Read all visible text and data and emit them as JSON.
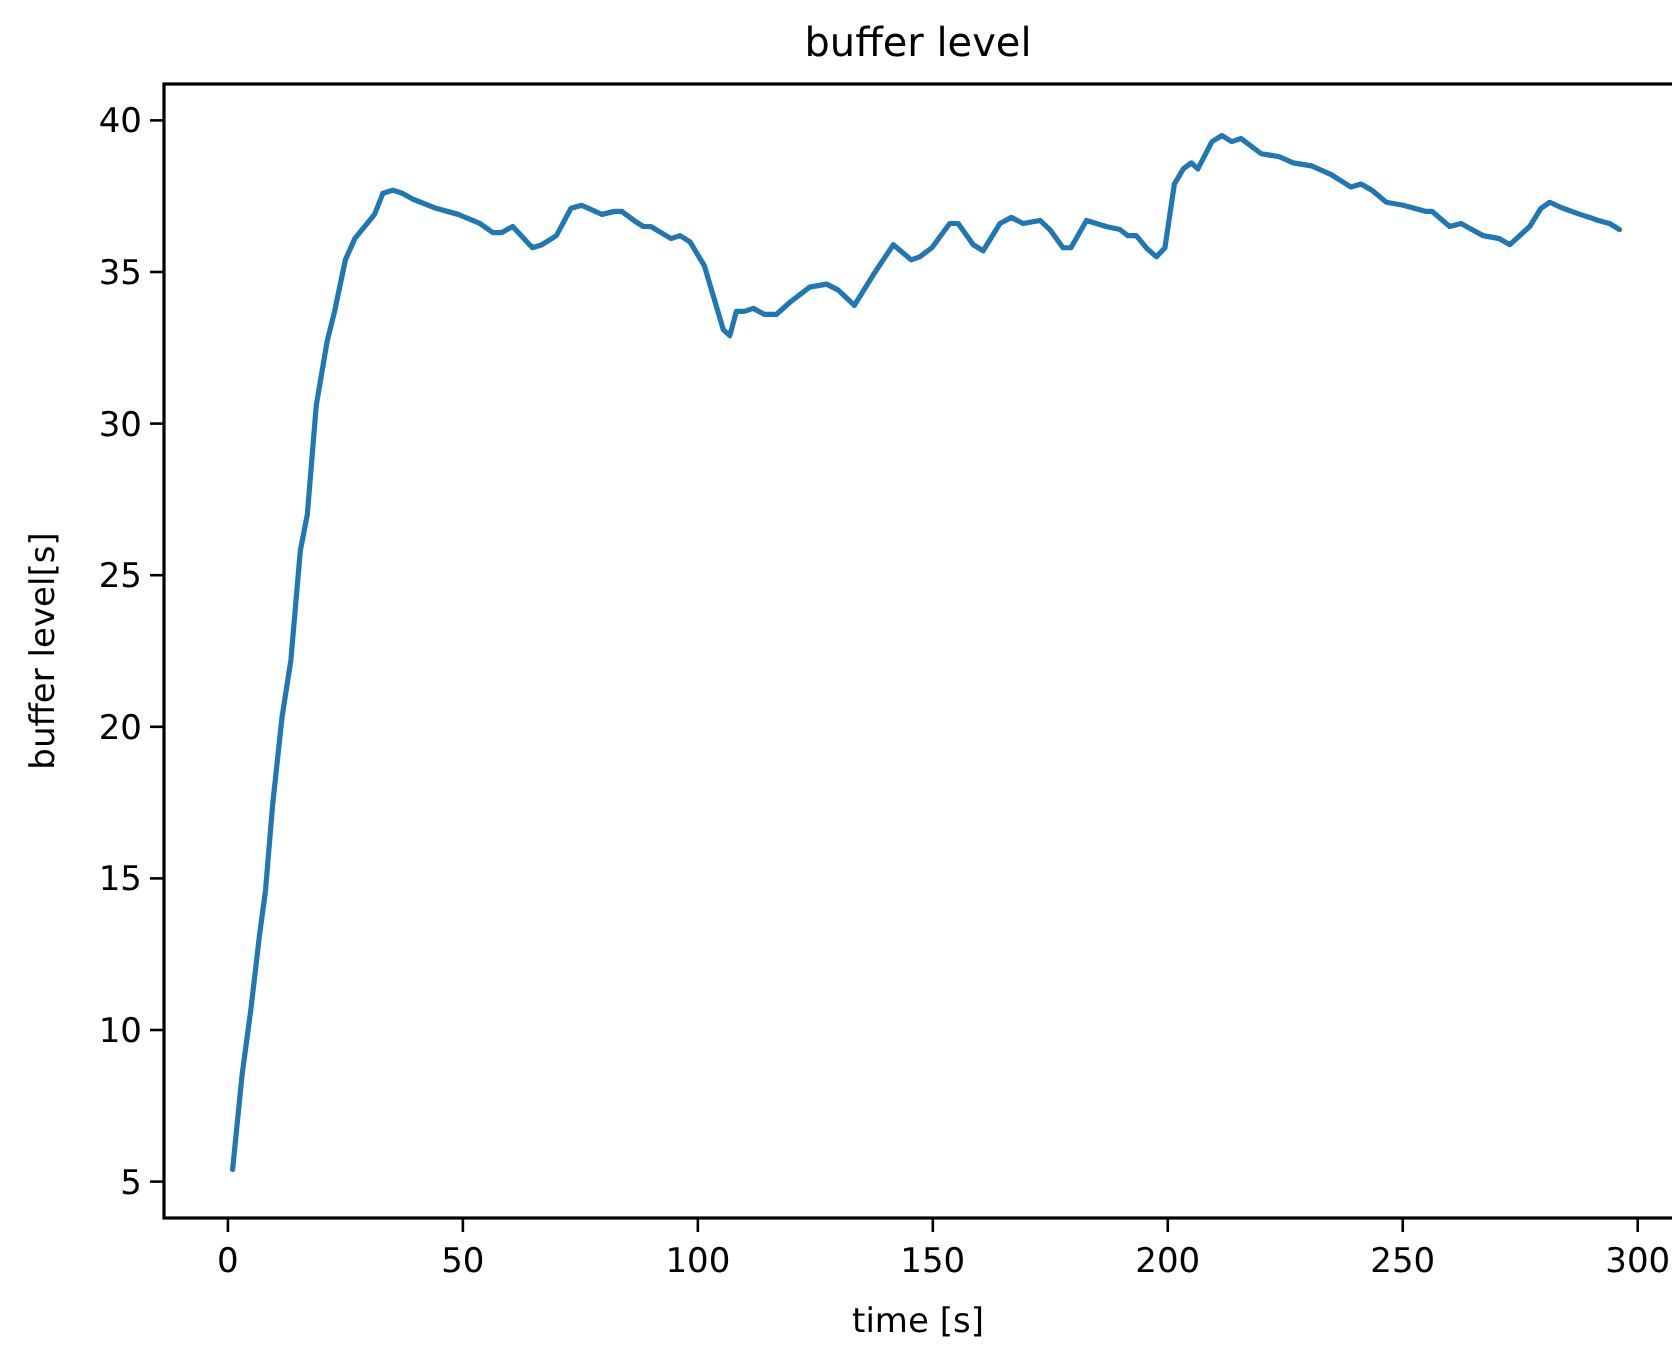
{
  "chart_data": {
    "type": "line",
    "title": "buffer level",
    "xlabel": "time [s]",
    "ylabel": "buffer level[s]",
    "xlim": [
      -13.6,
      310.7
    ],
    "ylim": [
      3.8,
      41.2
    ],
    "xticks": [
      0,
      50,
      100,
      150,
      200,
      250,
      300
    ],
    "yticks": [
      5,
      10,
      15,
      20,
      25,
      30,
      35,
      40
    ],
    "grid": false,
    "marker": "none",
    "line_style": "solid",
    "series": [
      {
        "color": "#1f77b4",
        "x": [
          1,
          3,
          4.9,
          6.7,
          8,
          9.5,
          11.5,
          13.4,
          15.4,
          16.9,
          18.8,
          21.1,
          22.7,
          25,
          27,
          31.2,
          33,
          35.1,
          37.1,
          39.4,
          44.3,
          49,
          53.6,
          56.4,
          58.3,
          60.6,
          64.8,
          66.8,
          69.9,
          73,
          75.3,
          79.6,
          82.3,
          83.8,
          86.4,
          88.4,
          90,
          94.3,
          96.2,
          98.3,
          101.4,
          105.4,
          106.8,
          108.2,
          109.9,
          111.8,
          114.2,
          116.7,
          119.6,
          123.8,
          127.4,
          129.9,
          133.3,
          137.3,
          141.6,
          145.4,
          147.2,
          149.8,
          153.6,
          155.4,
          158.6,
          160.7,
          164.3,
          166.7,
          169.2,
          172.8,
          174.9,
          177.7,
          179.4,
          182.7,
          186.9,
          189.8,
          191.5,
          193.3,
          195.4,
          197.6,
          199.4,
          201.4,
          203.3,
          205,
          206.4,
          209.4,
          211.5,
          213.6,
          215.6,
          219.9,
          223.8,
          226.7,
          230.6,
          234.9,
          239,
          241.1,
          243.4,
          246.5,
          250.1,
          254.8,
          256.2,
          260,
          262.4,
          264.7,
          267.1,
          270.6,
          272.8,
          277,
          279.4,
          281.3,
          284.1,
          287.7,
          289.8,
          291.6,
          294,
          296.1
        ],
        "values": [
          5.4,
          8.5,
          10.7,
          13.1,
          14.6,
          17.4,
          20.3,
          22.2,
          25.8,
          27,
          30.6,
          32.7,
          33.7,
          35.4,
          36.1,
          36.9,
          37.6,
          37.7,
          37.6,
          37.4,
          37.1,
          36.9,
          36.6,
          36.3,
          36.3,
          36.5,
          35.8,
          35.9,
          36.2,
          37.1,
          37.2,
          36.9,
          37,
          37,
          36.7,
          36.5,
          36.5,
          36.1,
          36.2,
          36,
          35.2,
          33.1,
          32.9,
          33.7,
          33.7,
          33.8,
          33.6,
          33.6,
          34,
          34.5,
          34.6,
          34.4,
          33.9,
          34.9,
          35.9,
          35.4,
          35.5,
          35.8,
          36.6,
          36.6,
          35.9,
          35.7,
          36.6,
          36.8,
          36.6,
          36.7,
          36.4,
          35.8,
          35.8,
          36.7,
          36.5,
          36.4,
          36.2,
          36.2,
          35.8,
          35.5,
          35.8,
          37.9,
          38.4,
          38.6,
          38.4,
          39.3,
          39.5,
          39.3,
          39.4,
          38.9,
          38.8,
          38.6,
          38.5,
          38.2,
          37.8,
          37.9,
          37.7,
          37.3,
          37.2,
          37,
          37,
          36.5,
          36.6,
          36.4,
          36.2,
          36.1,
          35.9,
          36.5,
          37.1,
          37.3,
          37.1,
          36.9,
          36.8,
          36.7,
          36.6,
          36.4
        ]
      }
    ]
  }
}
